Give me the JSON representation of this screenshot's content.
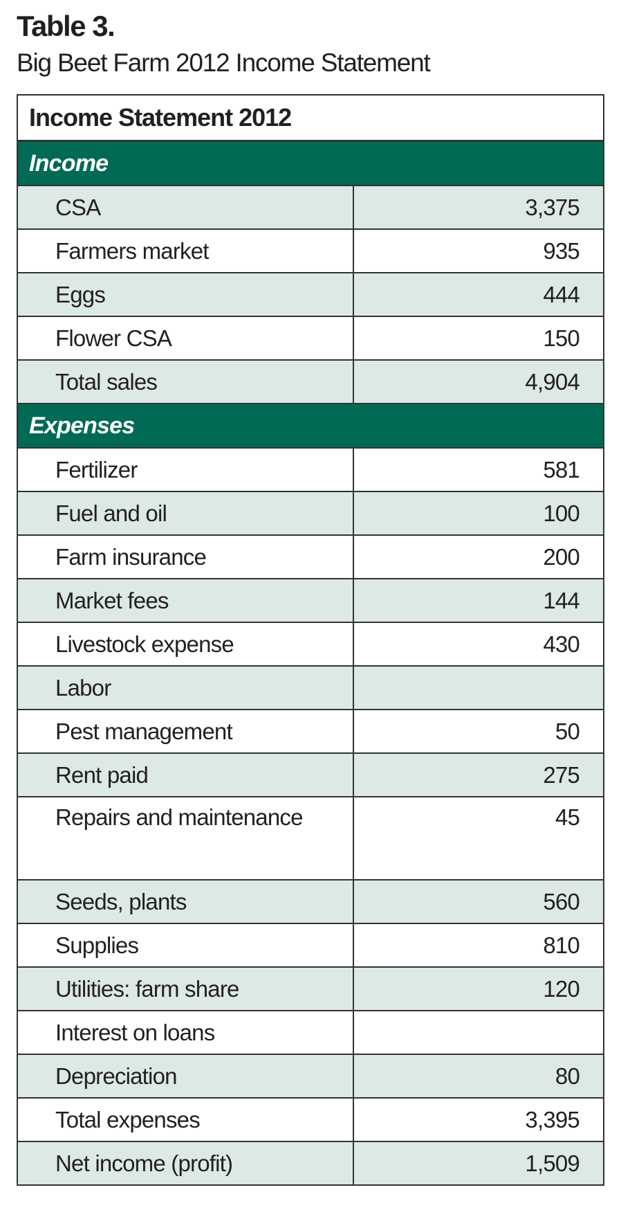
{
  "caption": {
    "label": "Table 3.",
    "subtitle": "Big Beet Farm 2012 Income Statement"
  },
  "colors": {
    "section_header": "#006a55",
    "row_shade": "#dce9e6"
  },
  "table": {
    "title": "Income Statement 2012",
    "income": {
      "header": "Income",
      "rows": [
        {
          "label": "CSA",
          "value": "3,375"
        },
        {
          "label": "Farmers market",
          "value": "935"
        },
        {
          "label": "Eggs",
          "value": "444"
        },
        {
          "label": "Flower CSA",
          "value": "150"
        },
        {
          "label": "Total sales",
          "value": "4,904"
        }
      ]
    },
    "expenses": {
      "header": "Expenses",
      "rows": [
        {
          "label": "Fertilizer",
          "value": "581"
        },
        {
          "label": "Fuel and oil",
          "value": "100"
        },
        {
          "label": "Farm insurance",
          "value": "200"
        },
        {
          "label": "Market fees",
          "value": "144"
        },
        {
          "label": "Livestock expense",
          "value": "430"
        },
        {
          "label": "Labor",
          "value": ""
        },
        {
          "label": "Pest management",
          "value": "50"
        },
        {
          "label": "Rent paid",
          "value": "275"
        },
        {
          "label": "Repairs and maintenance",
          "value": "45"
        },
        {
          "label": "Seeds, plants",
          "value": "560"
        },
        {
          "label": "Supplies",
          "value": "810"
        },
        {
          "label": "Utilities: farm share",
          "value": "120"
        },
        {
          "label": "Interest on loans",
          "value": ""
        },
        {
          "label": "Depreciation",
          "value": "80"
        },
        {
          "label": "Total expenses",
          "value": "3,395"
        },
        {
          "label": "Net income (profit)",
          "value": "1,509"
        }
      ]
    }
  }
}
